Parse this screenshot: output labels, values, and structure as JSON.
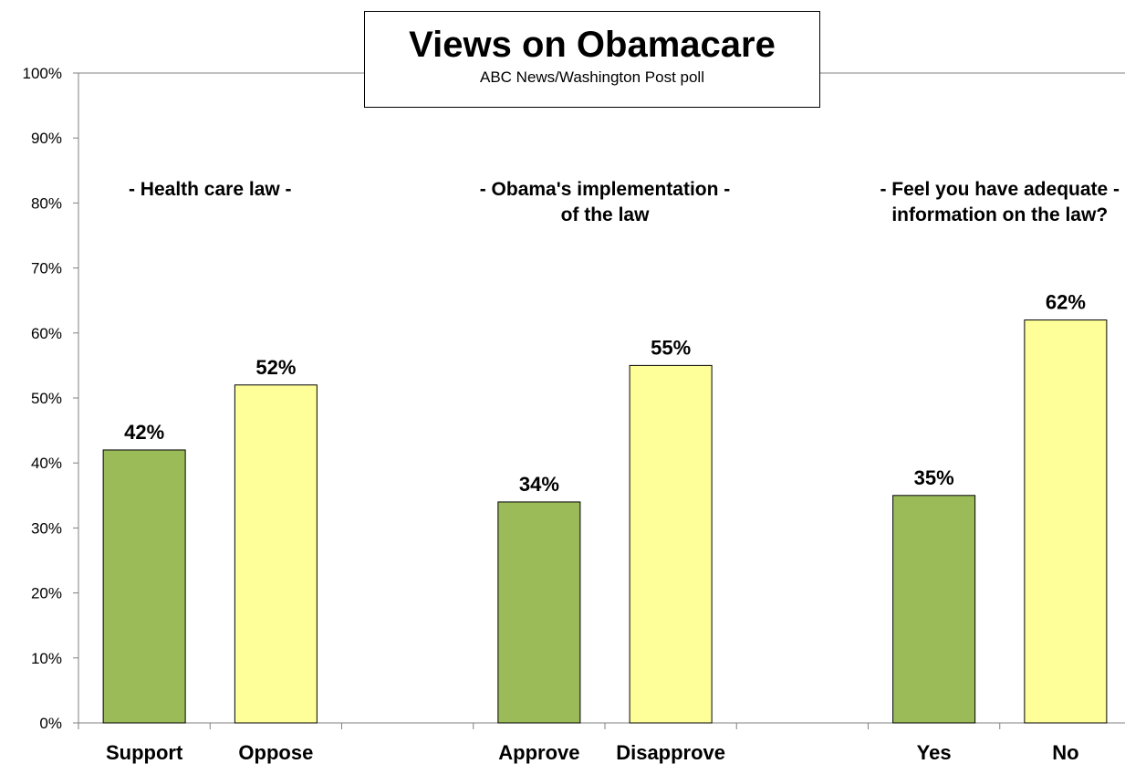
{
  "chart_data": {
    "type": "bar",
    "title": "Views on Obamacare",
    "subtitle": "ABC News/Washington Post poll",
    "xlabel": "",
    "ylabel": "",
    "ylim": [
      0,
      100
    ],
    "ytick_step": 10,
    "ytick_format": "percent",
    "grid": false,
    "legend": "none",
    "slots": 8,
    "groups": [
      {
        "label": [
          "- Health care law -"
        ],
        "slot_span": [
          0,
          2
        ]
      },
      {
        "label": [
          "- Obama's implementation -",
          "of the law"
        ],
        "slot_span": [
          3,
          5
        ]
      },
      {
        "label": [
          "- Feel you have adequate -",
          "information on the law?"
        ],
        "slot_span": [
          6,
          8
        ]
      }
    ],
    "bars": [
      {
        "category": "Support",
        "value": 42,
        "slot": 0,
        "color": "#9bbb59"
      },
      {
        "category": "Oppose",
        "value": 52,
        "slot": 1,
        "color": "#ffff99"
      },
      {
        "category": "Approve",
        "value": 34,
        "slot": 3,
        "color": "#9bbb59"
      },
      {
        "category": "Disapprove",
        "value": 55,
        "slot": 4,
        "color": "#ffff99"
      },
      {
        "category": "Yes",
        "value": 35,
        "slot": 6,
        "color": "#9bbb59"
      },
      {
        "category": "No",
        "value": 62,
        "slot": 7,
        "color": "#ffff99"
      }
    ]
  }
}
